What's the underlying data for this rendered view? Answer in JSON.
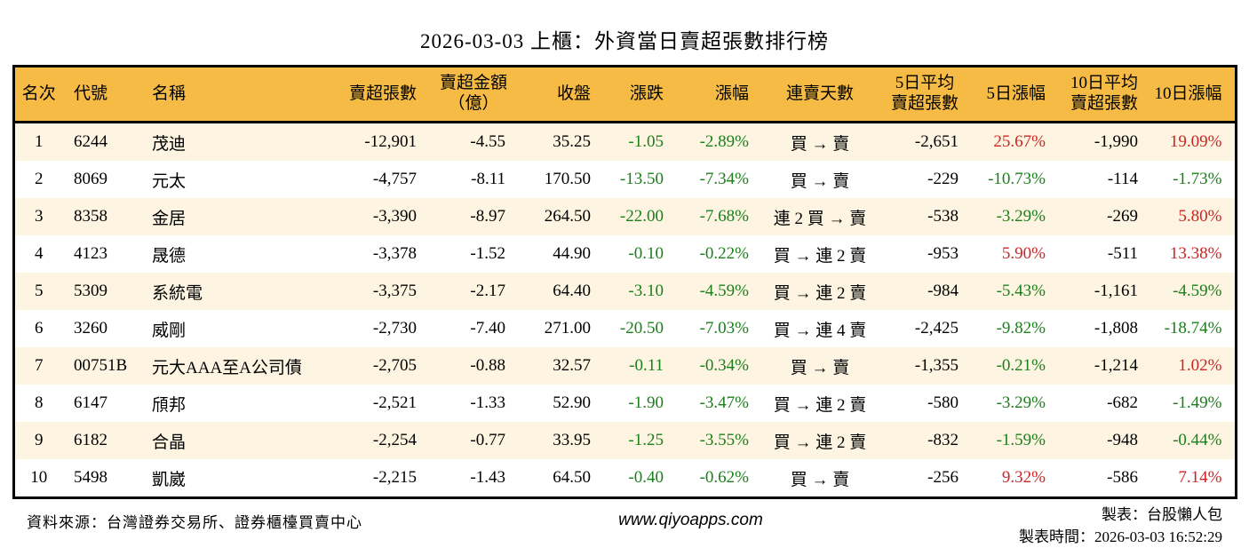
{
  "page": {
    "title": "2026-03-03 上櫃：外資當日賣超張數排行榜"
  },
  "colors": {
    "header_bg": "#F6BB44",
    "row_alt_bg": "#FDF5E1",
    "row_bg": "#FFFFFF",
    "positive_red": "#CE2424",
    "negative_green": "#1A801A",
    "table_border": "#000000"
  },
  "table": {
    "headers": [
      {
        "key": "rank",
        "lines": [
          "名次"
        ]
      },
      {
        "key": "code",
        "lines": [
          "代號"
        ]
      },
      {
        "key": "name",
        "lines": [
          "名稱"
        ]
      },
      {
        "key": "sell-volume",
        "lines": [
          "賣超張數"
        ]
      },
      {
        "key": "sell-amount",
        "lines": [
          "賣超金額",
          "（億）"
        ]
      },
      {
        "key": "close",
        "lines": [
          "收盤"
        ]
      },
      {
        "key": "change",
        "lines": [
          "漲跌"
        ]
      },
      {
        "key": "change-pct",
        "lines": [
          "漲幅"
        ]
      },
      {
        "key": "sell-streak",
        "lines": [
          "連賣天數"
        ]
      },
      {
        "key": "avg5-sell",
        "lines": [
          "5日平均",
          "賣超張數"
        ]
      },
      {
        "key": "pct5",
        "lines": [
          "5日漲幅"
        ]
      },
      {
        "key": "avg10-sell",
        "lines": [
          "10日平均",
          "賣超張數"
        ]
      },
      {
        "key": "pct10",
        "lines": [
          "10日漲幅"
        ]
      }
    ],
    "rows": [
      {
        "cells": [
          {
            "v": "1"
          },
          {
            "v": "6244"
          },
          {
            "v": "茂迪"
          },
          {
            "v": "-12,901"
          },
          {
            "v": "-4.55"
          },
          {
            "v": "35.25"
          },
          {
            "v": "-1.05",
            "c": "green"
          },
          {
            "v": "-2.89%",
            "c": "green"
          },
          {
            "v": "買 → 賣"
          },
          {
            "v": "-2,651"
          },
          {
            "v": "25.67%",
            "c": "red"
          },
          {
            "v": "-1,990"
          },
          {
            "v": "19.09%",
            "c": "red"
          }
        ]
      },
      {
        "cells": [
          {
            "v": "2"
          },
          {
            "v": "8069"
          },
          {
            "v": "元太"
          },
          {
            "v": "-4,757"
          },
          {
            "v": "-8.11"
          },
          {
            "v": "170.50"
          },
          {
            "v": "-13.50",
            "c": "green"
          },
          {
            "v": "-7.34%",
            "c": "green"
          },
          {
            "v": "買 → 賣"
          },
          {
            "v": "-229"
          },
          {
            "v": "-10.73%",
            "c": "green"
          },
          {
            "v": "-114"
          },
          {
            "v": "-1.73%",
            "c": "green"
          }
        ]
      },
      {
        "cells": [
          {
            "v": "3"
          },
          {
            "v": "8358"
          },
          {
            "v": "金居"
          },
          {
            "v": "-3,390"
          },
          {
            "v": "-8.97"
          },
          {
            "v": "264.50"
          },
          {
            "v": "-22.00",
            "c": "green"
          },
          {
            "v": "-7.68%",
            "c": "green"
          },
          {
            "v": "連 2 買 → 賣"
          },
          {
            "v": "-538"
          },
          {
            "v": "-3.29%",
            "c": "green"
          },
          {
            "v": "-269"
          },
          {
            "v": "5.80%",
            "c": "red"
          }
        ]
      },
      {
        "cells": [
          {
            "v": "4"
          },
          {
            "v": "4123"
          },
          {
            "v": "晟德"
          },
          {
            "v": "-3,378"
          },
          {
            "v": "-1.52"
          },
          {
            "v": "44.90"
          },
          {
            "v": "-0.10",
            "c": "green"
          },
          {
            "v": "-0.22%",
            "c": "green"
          },
          {
            "v": "買 → 連 2 賣"
          },
          {
            "v": "-953"
          },
          {
            "v": "5.90%",
            "c": "red"
          },
          {
            "v": "-511"
          },
          {
            "v": "13.38%",
            "c": "red"
          }
        ]
      },
      {
        "cells": [
          {
            "v": "5"
          },
          {
            "v": "5309"
          },
          {
            "v": "系統電"
          },
          {
            "v": "-3,375"
          },
          {
            "v": "-2.17"
          },
          {
            "v": "64.40"
          },
          {
            "v": "-3.10",
            "c": "green"
          },
          {
            "v": "-4.59%",
            "c": "green"
          },
          {
            "v": "買 → 連 2 賣"
          },
          {
            "v": "-984"
          },
          {
            "v": "-5.43%",
            "c": "green"
          },
          {
            "v": "-1,161"
          },
          {
            "v": "-4.59%",
            "c": "green"
          }
        ]
      },
      {
        "cells": [
          {
            "v": "6"
          },
          {
            "v": "3260"
          },
          {
            "v": "威剛"
          },
          {
            "v": "-2,730"
          },
          {
            "v": "-7.40"
          },
          {
            "v": "271.00"
          },
          {
            "v": "-20.50",
            "c": "green"
          },
          {
            "v": "-7.03%",
            "c": "green"
          },
          {
            "v": "買 → 連 4 賣"
          },
          {
            "v": "-2,425"
          },
          {
            "v": "-9.82%",
            "c": "green"
          },
          {
            "v": "-1,808"
          },
          {
            "v": "-18.74%",
            "c": "green"
          }
        ]
      },
      {
        "cells": [
          {
            "v": "7"
          },
          {
            "v": "00751B"
          },
          {
            "v": "元大AAA至A公司債"
          },
          {
            "v": "-2,705"
          },
          {
            "v": "-0.88"
          },
          {
            "v": "32.57"
          },
          {
            "v": "-0.11",
            "c": "green"
          },
          {
            "v": "-0.34%",
            "c": "green"
          },
          {
            "v": "買 → 賣"
          },
          {
            "v": "-1,355"
          },
          {
            "v": "-0.21%",
            "c": "green"
          },
          {
            "v": "-1,214"
          },
          {
            "v": "1.02%",
            "c": "red"
          }
        ]
      },
      {
        "cells": [
          {
            "v": "8"
          },
          {
            "v": "6147"
          },
          {
            "v": "頎邦"
          },
          {
            "v": "-2,521"
          },
          {
            "v": "-1.33"
          },
          {
            "v": "52.90"
          },
          {
            "v": "-1.90",
            "c": "green"
          },
          {
            "v": "-3.47%",
            "c": "green"
          },
          {
            "v": "買 → 連 2 賣"
          },
          {
            "v": "-580"
          },
          {
            "v": "-3.29%",
            "c": "green"
          },
          {
            "v": "-682"
          },
          {
            "v": "-1.49%",
            "c": "green"
          }
        ]
      },
      {
        "cells": [
          {
            "v": "9"
          },
          {
            "v": "6182"
          },
          {
            "v": "合晶"
          },
          {
            "v": "-2,254"
          },
          {
            "v": "-0.77"
          },
          {
            "v": "33.95"
          },
          {
            "v": "-1.25",
            "c": "green"
          },
          {
            "v": "-3.55%",
            "c": "green"
          },
          {
            "v": "買 → 連 2 賣"
          },
          {
            "v": "-832"
          },
          {
            "v": "-1.59%",
            "c": "green"
          },
          {
            "v": "-948"
          },
          {
            "v": "-0.44%",
            "c": "green"
          }
        ]
      },
      {
        "cells": [
          {
            "v": "10"
          },
          {
            "v": "5498"
          },
          {
            "v": "凱崴"
          },
          {
            "v": "-2,215"
          },
          {
            "v": "-1.43"
          },
          {
            "v": "64.50"
          },
          {
            "v": "-0.40",
            "c": "green"
          },
          {
            "v": "-0.62%",
            "c": "green"
          },
          {
            "v": "買 → 賣"
          },
          {
            "v": "-256"
          },
          {
            "v": "9.32%",
            "c": "red"
          },
          {
            "v": "-586"
          },
          {
            "v": "7.14%",
            "c": "red"
          }
        ]
      }
    ]
  },
  "footer": {
    "source": "資料來源：台灣證券交易所、證券櫃檯買賣中心",
    "website": "www.qiyoapps.com",
    "maker": "製表：台股懶人包",
    "time": "製表時間：2026-03-03 16:52:29"
  }
}
